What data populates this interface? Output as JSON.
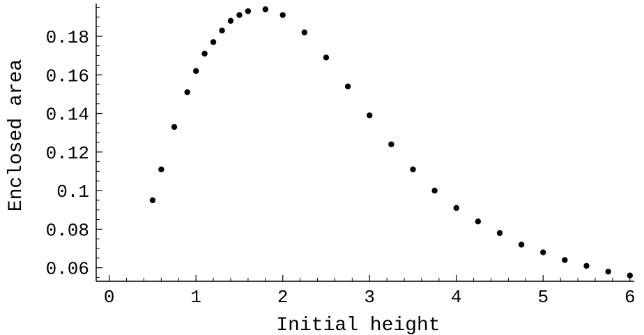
{
  "chart_data": {
    "type": "scatter",
    "title": "",
    "xlabel": "Initial height",
    "ylabel": "Enclosed area",
    "xlim": [
      -0.15,
      6.05
    ],
    "ylim": [
      0.053,
      0.197
    ],
    "x_ticks": [
      0,
      1,
      2,
      3,
      4,
      5,
      6
    ],
    "x_tick_labels": [
      "0",
      "1",
      "2",
      "3",
      "4",
      "5",
      "6"
    ],
    "y_ticks": [
      0.06,
      0.08,
      0.1,
      0.12,
      0.14,
      0.16,
      0.18
    ],
    "y_tick_labels": [
      "0.06",
      "0.08",
      "0.1",
      "0.12",
      "0.14",
      "0.16",
      "0.18"
    ],
    "grid": false,
    "legend": "none",
    "marker_color": "#000000",
    "series": [
      {
        "x": [
          0.5,
          0.6,
          0.75,
          0.9,
          1.0,
          1.1,
          1.2,
          1.3,
          1.4,
          1.5,
          1.6,
          1.8,
          2.0,
          2.25,
          2.5,
          2.75,
          3.0,
          3.25,
          3.5,
          3.75,
          4.0,
          4.25,
          4.5,
          4.75,
          5.0,
          5.25,
          5.5,
          5.75,
          6.0
        ],
        "y": [
          0.095,
          0.111,
          0.133,
          0.151,
          0.162,
          0.171,
          0.177,
          0.183,
          0.188,
          0.191,
          0.193,
          0.194,
          0.191,
          0.182,
          0.169,
          0.154,
          0.139,
          0.124,
          0.111,
          0.1,
          0.091,
          0.084,
          0.078,
          0.072,
          0.068,
          0.064,
          0.061,
          0.058,
          0.056
        ]
      }
    ]
  }
}
